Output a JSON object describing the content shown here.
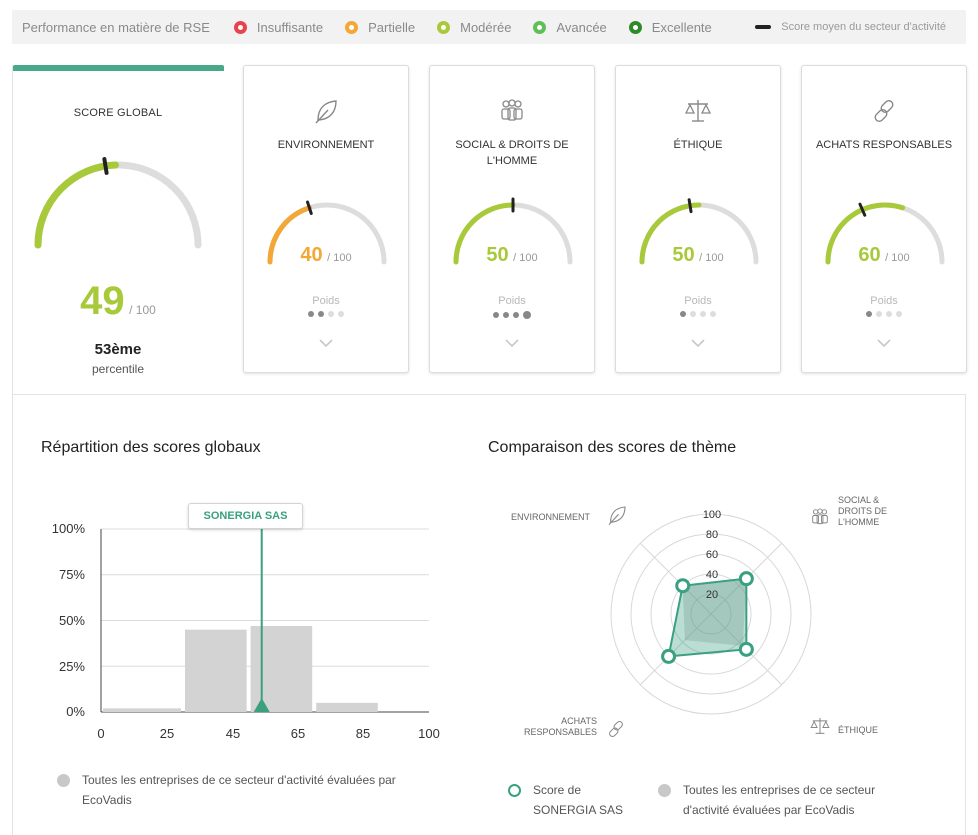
{
  "legend": {
    "title": "Performance en matière de RSE",
    "items": [
      {
        "label": "Insuffisante",
        "color": "#e8434d"
      },
      {
        "label": "Partielle",
        "color": "#f2a736"
      },
      {
        "label": "Modérée",
        "color": "#a8c93a"
      },
      {
        "label": "Avancée",
        "color": "#5fbf59"
      },
      {
        "label": "Excellente",
        "color": "#2f8a2b"
      }
    ],
    "average_label": "Score moyen du secteur d'activité"
  },
  "global": {
    "title": "SCORE GLOBAL",
    "score": "49",
    "out_of": "/ 100",
    "score_value": 49,
    "sector_avg": 45,
    "color": "#a8c93a",
    "percentile": "53ème",
    "percentile_label": "percentile"
  },
  "themes": [
    {
      "label": "ENVIRONNEMENT",
      "icon": "leaf-icon",
      "score": "40",
      "score_value": 40,
      "sector_avg": 40,
      "color": "#f2a736",
      "out_of": "/ 100",
      "poids_label": "Poids",
      "weight": 2
    },
    {
      "label": "SOCIAL & DROITS DE L'HOMME",
      "icon": "people-icon",
      "score": "50",
      "score_value": 50,
      "sector_avg": 50,
      "color": "#a8c93a",
      "out_of": "/ 100",
      "poids_label": "Poids",
      "weight": 4
    },
    {
      "label": "ÉTHIQUE",
      "icon": "scales-icon",
      "score": "50",
      "score_value": 50,
      "sector_avg": 45,
      "color": "#a8c93a",
      "out_of": "/ 100",
      "poids_label": "Poids",
      "weight": 1
    },
    {
      "label": "ACHATS RESPONSABLES",
      "icon": "link-icon",
      "score": "60",
      "score_value": 60,
      "sector_avg": 37,
      "color": "#a8c93a",
      "out_of": "/ 100",
      "poids_label": "Poids",
      "weight": 1
    }
  ],
  "histogram": {
    "title": "Répartition des scores globaux",
    "marker_label": "SONERGIA SAS",
    "y_ticks": [
      "100%",
      "75%",
      "50%",
      "25%",
      "0%"
    ],
    "x_ticks": [
      "0",
      "25",
      "45",
      "65",
      "85",
      "100"
    ],
    "legend_label": "Toutes les entreprises de ce secteur d'activité évaluées par EcoVadis"
  },
  "radar": {
    "title": "Comparaison des scores de thème",
    "axis_labels": [
      "ENVIRONNEMENT",
      "SOCIAL & DROITS DE L'HOMME",
      "ÉTHIQUE",
      "ACHATS RESPONSABLES"
    ],
    "ticks": [
      "100",
      "80",
      "60",
      "40",
      "20"
    ],
    "legend_company": "Score de SONERGIA SAS",
    "legend_all": "Toutes les entreprises de ce secteur d'activité évaluées par EcoVadis"
  },
  "chart_data": [
    {
      "type": "bar",
      "title": "Répartition des scores globaux",
      "categories": [
        "0-25",
        "25-45",
        "45-65",
        "65-85",
        "85-100"
      ],
      "values": [
        2,
        45,
        47,
        5,
        0
      ],
      "unit": "%",
      "ylim": [
        0,
        100
      ],
      "marker": {
        "label": "SONERGIA SAS",
        "x": 49
      },
      "grid": true
    },
    {
      "type": "radar",
      "title": "Comparaison des scores de thème",
      "axes": [
        "ENVIRONNEMENT",
        "SOCIAL & DROITS DE L'HOMME",
        "ÉTHIQUE",
        "ACHATS RESPONSABLES"
      ],
      "rlim": [
        0,
        100
      ],
      "series": [
        {
          "name": "Score de SONERGIA SAS",
          "values": [
            40,
            50,
            50,
            60
          ]
        },
        {
          "name": "Toutes les entreprises de ce secteur d'activité évaluées par EcoVadis",
          "values": [
            40,
            50,
            45,
            37
          ]
        }
      ]
    }
  ]
}
